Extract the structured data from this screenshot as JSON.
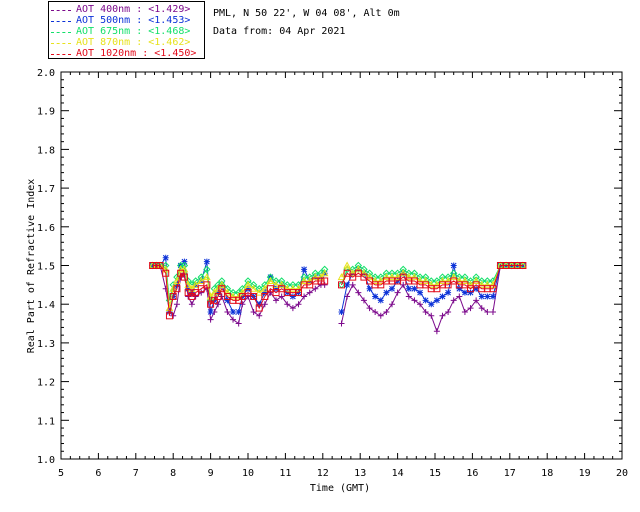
{
  "legend": [
    {
      "label": "AOT  400nm : <1.429>",
      "color": "#7c0a8c"
    },
    {
      "label": "AOT  500nm : <1.453>",
      "color": "#0c32d8"
    },
    {
      "label": "AOT  675nm : <1.468>",
      "color": "#13e06a"
    },
    {
      "label": "AOT  870nm : <1.462>",
      "color": "#e7e21d"
    },
    {
      "label": "AOT 1020nm : <1.450>",
      "color": "#e20a1a"
    }
  ],
  "info": {
    "site": "PML, N 50 22', W 04 08', Alt 0m",
    "date": "Data from: 04 Apr 2021"
  },
  "chart_data": {
    "type": "line",
    "title": "",
    "xlabel": "Time (GMT)",
    "ylabel": "Real Part of Refractive Index",
    "xlim": [
      5,
      20
    ],
    "ylim": [
      1.0,
      2.0
    ],
    "xticks": [
      5,
      6,
      7,
      8,
      9,
      10,
      11,
      12,
      13,
      14,
      15,
      16,
      17,
      18,
      19,
      20
    ],
    "yticks": [
      "1.0",
      "1.1",
      "1.2",
      "1.3",
      "1.4",
      "1.5",
      "1.6",
      "1.7",
      "1.8",
      "1.9",
      "2.0"
    ],
    "x": [
      7.45,
      7.55,
      7.65,
      7.8,
      7.9,
      8.0,
      8.1,
      8.2,
      8.3,
      8.4,
      8.5,
      8.6,
      8.75,
      8.9,
      9.0,
      9.1,
      9.2,
      9.3,
      9.45,
      9.6,
      9.75,
      9.85,
      10.0,
      10.15,
      10.3,
      10.45,
      10.6,
      10.75,
      10.9,
      11.05,
      11.2,
      11.35,
      11.5,
      11.65,
      11.8,
      11.95,
      12.05,
      12.5,
      12.65,
      12.8,
      12.95,
      13.1,
      13.25,
      13.4,
      13.55,
      13.7,
      13.85,
      14.0,
      14.15,
      14.3,
      14.45,
      14.6,
      14.75,
      14.9,
      15.05,
      15.2,
      15.35,
      15.5,
      15.65,
      15.8,
      15.95,
      16.1,
      16.25,
      16.4,
      16.55,
      16.75,
      16.9,
      17.05,
      17.2,
      17.35
    ],
    "series": [
      {
        "name": "AOT 400nm",
        "marker": "plus",
        "values": [
          1.5,
          1.5,
          1.5,
          1.44,
          1.38,
          1.37,
          1.4,
          1.47,
          1.48,
          1.42,
          1.4,
          1.42,
          1.43,
          1.44,
          1.36,
          1.38,
          1.4,
          1.42,
          1.38,
          1.36,
          1.35,
          1.4,
          1.42,
          1.38,
          1.37,
          1.4,
          1.43,
          1.41,
          1.42,
          1.4,
          1.39,
          1.4,
          1.42,
          1.43,
          1.44,
          1.45,
          1.45,
          1.35,
          1.42,
          1.45,
          1.43,
          1.41,
          1.39,
          1.38,
          1.37,
          1.38,
          1.4,
          1.43,
          1.45,
          1.42,
          1.41,
          1.4,
          1.38,
          1.37,
          1.33,
          1.37,
          1.38,
          1.41,
          1.42,
          1.38,
          1.39,
          1.41,
          1.39,
          1.38,
          1.38,
          1.5,
          1.5,
          1.5,
          1.5,
          1.5
        ]
      },
      {
        "name": "AOT 500nm",
        "marker": "asterisk",
        "values": [
          1.5,
          1.5,
          1.5,
          1.52,
          1.38,
          1.42,
          1.45,
          1.5,
          1.51,
          1.44,
          1.43,
          1.45,
          1.46,
          1.51,
          1.38,
          1.41,
          1.43,
          1.45,
          1.41,
          1.38,
          1.38,
          1.42,
          1.44,
          1.42,
          1.4,
          1.43,
          1.47,
          1.44,
          1.45,
          1.43,
          1.42,
          1.43,
          1.49,
          1.46,
          1.47,
          1.47,
          1.48,
          1.38,
          1.45,
          1.48,
          1.49,
          1.48,
          1.44,
          1.42,
          1.41,
          1.43,
          1.44,
          1.46,
          1.48,
          1.44,
          1.44,
          1.43,
          1.41,
          1.4,
          1.41,
          1.42,
          1.43,
          1.5,
          1.44,
          1.43,
          1.43,
          1.44,
          1.42,
          1.42,
          1.42,
          1.5,
          1.5,
          1.5,
          1.5,
          1.5
        ]
      },
      {
        "name": "AOT 675nm",
        "marker": "diamond",
        "values": [
          1.5,
          1.5,
          1.5,
          1.5,
          1.41,
          1.45,
          1.47,
          1.5,
          1.5,
          1.46,
          1.45,
          1.46,
          1.47,
          1.49,
          1.41,
          1.44,
          1.45,
          1.46,
          1.44,
          1.43,
          1.43,
          1.44,
          1.46,
          1.45,
          1.44,
          1.45,
          1.47,
          1.46,
          1.46,
          1.45,
          1.45,
          1.45,
          1.47,
          1.47,
          1.48,
          1.48,
          1.49,
          1.45,
          1.49,
          1.49,
          1.5,
          1.49,
          1.48,
          1.47,
          1.47,
          1.48,
          1.48,
          1.48,
          1.49,
          1.48,
          1.48,
          1.47,
          1.47,
          1.46,
          1.46,
          1.47,
          1.47,
          1.48,
          1.47,
          1.47,
          1.46,
          1.47,
          1.46,
          1.46,
          1.46,
          1.5,
          1.5,
          1.5,
          1.5,
          1.5
        ]
      },
      {
        "name": "AOT 870nm",
        "marker": "triangle",
        "values": [
          1.5,
          1.5,
          1.5,
          1.49,
          1.39,
          1.44,
          1.46,
          1.49,
          1.49,
          1.45,
          1.44,
          1.45,
          1.46,
          1.47,
          1.42,
          1.43,
          1.44,
          1.45,
          1.43,
          1.42,
          1.42,
          1.43,
          1.45,
          1.44,
          1.43,
          1.44,
          1.46,
          1.45,
          1.45,
          1.44,
          1.44,
          1.44,
          1.46,
          1.46,
          1.47,
          1.47,
          1.48,
          1.47,
          1.5,
          1.48,
          1.49,
          1.48,
          1.47,
          1.46,
          1.46,
          1.47,
          1.47,
          1.47,
          1.48,
          1.47,
          1.47,
          1.46,
          1.46,
          1.45,
          1.45,
          1.46,
          1.46,
          1.47,
          1.46,
          1.46,
          1.45,
          1.46,
          1.45,
          1.45,
          1.45,
          1.5,
          1.5,
          1.5,
          1.5,
          1.5
        ]
      },
      {
        "name": "AOT 1020nm",
        "marker": "square",
        "values": [
          1.5,
          1.5,
          1.5,
          1.48,
          1.37,
          1.42,
          1.44,
          1.48,
          1.47,
          1.43,
          1.42,
          1.43,
          1.44,
          1.45,
          1.4,
          1.41,
          1.42,
          1.44,
          1.42,
          1.41,
          1.41,
          1.42,
          1.43,
          1.42,
          1.39,
          1.42,
          1.44,
          1.43,
          1.44,
          1.43,
          1.43,
          1.43,
          1.45,
          1.45,
          1.46,
          1.46,
          1.46,
          1.45,
          1.48,
          1.47,
          1.48,
          1.47,
          1.46,
          1.45,
          1.45,
          1.46,
          1.46,
          1.46,
          1.47,
          1.46,
          1.46,
          1.45,
          1.45,
          1.44,
          1.44,
          1.45,
          1.45,
          1.46,
          1.45,
          1.45,
          1.44,
          1.45,
          1.44,
          1.44,
          1.44,
          1.5,
          1.5,
          1.5,
          1.5,
          1.5
        ]
      }
    ]
  }
}
